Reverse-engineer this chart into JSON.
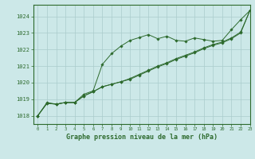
{
  "background_color": "#cce8e8",
  "plot_bg_color": "#cce8e8",
  "grid_color": "#aacccc",
  "line_color": "#2d6a2d",
  "title": "Graphe pression niveau de la mer (hPa)",
  "xlim": [
    -0.5,
    23
  ],
  "ylim": [
    1017.5,
    1024.7
  ],
  "yticks": [
    1018,
    1019,
    1020,
    1021,
    1022,
    1023,
    1024
  ],
  "xticks": [
    0,
    1,
    2,
    3,
    4,
    5,
    6,
    7,
    8,
    9,
    10,
    11,
    12,
    13,
    14,
    15,
    16,
    17,
    18,
    19,
    20,
    21,
    22,
    23
  ],
  "series1": [
    1018.0,
    1018.8,
    1018.7,
    1018.8,
    1018.8,
    1019.3,
    1019.5,
    1021.1,
    1021.75,
    1022.2,
    1022.55,
    1022.72,
    1022.9,
    1022.65,
    1022.8,
    1022.55,
    1022.5,
    1022.7,
    1022.6,
    1022.5,
    1022.55,
    1023.2,
    1023.8,
    1024.35
  ],
  "series2": [
    1018.0,
    1018.75,
    1018.7,
    1018.8,
    1018.8,
    1019.2,
    1019.45,
    1019.75,
    1019.9,
    1020.05,
    1020.25,
    1020.5,
    1020.75,
    1021.0,
    1021.2,
    1021.45,
    1021.65,
    1021.85,
    1022.1,
    1022.3,
    1022.45,
    1022.7,
    1023.05,
    1024.35
  ],
  "series3": [
    1018.0,
    1018.75,
    1018.7,
    1018.8,
    1018.8,
    1019.2,
    1019.45,
    1019.75,
    1019.9,
    1020.05,
    1020.2,
    1020.45,
    1020.7,
    1020.95,
    1021.15,
    1021.4,
    1021.6,
    1021.8,
    1022.05,
    1022.25,
    1022.4,
    1022.65,
    1023.0,
    1024.35
  ]
}
